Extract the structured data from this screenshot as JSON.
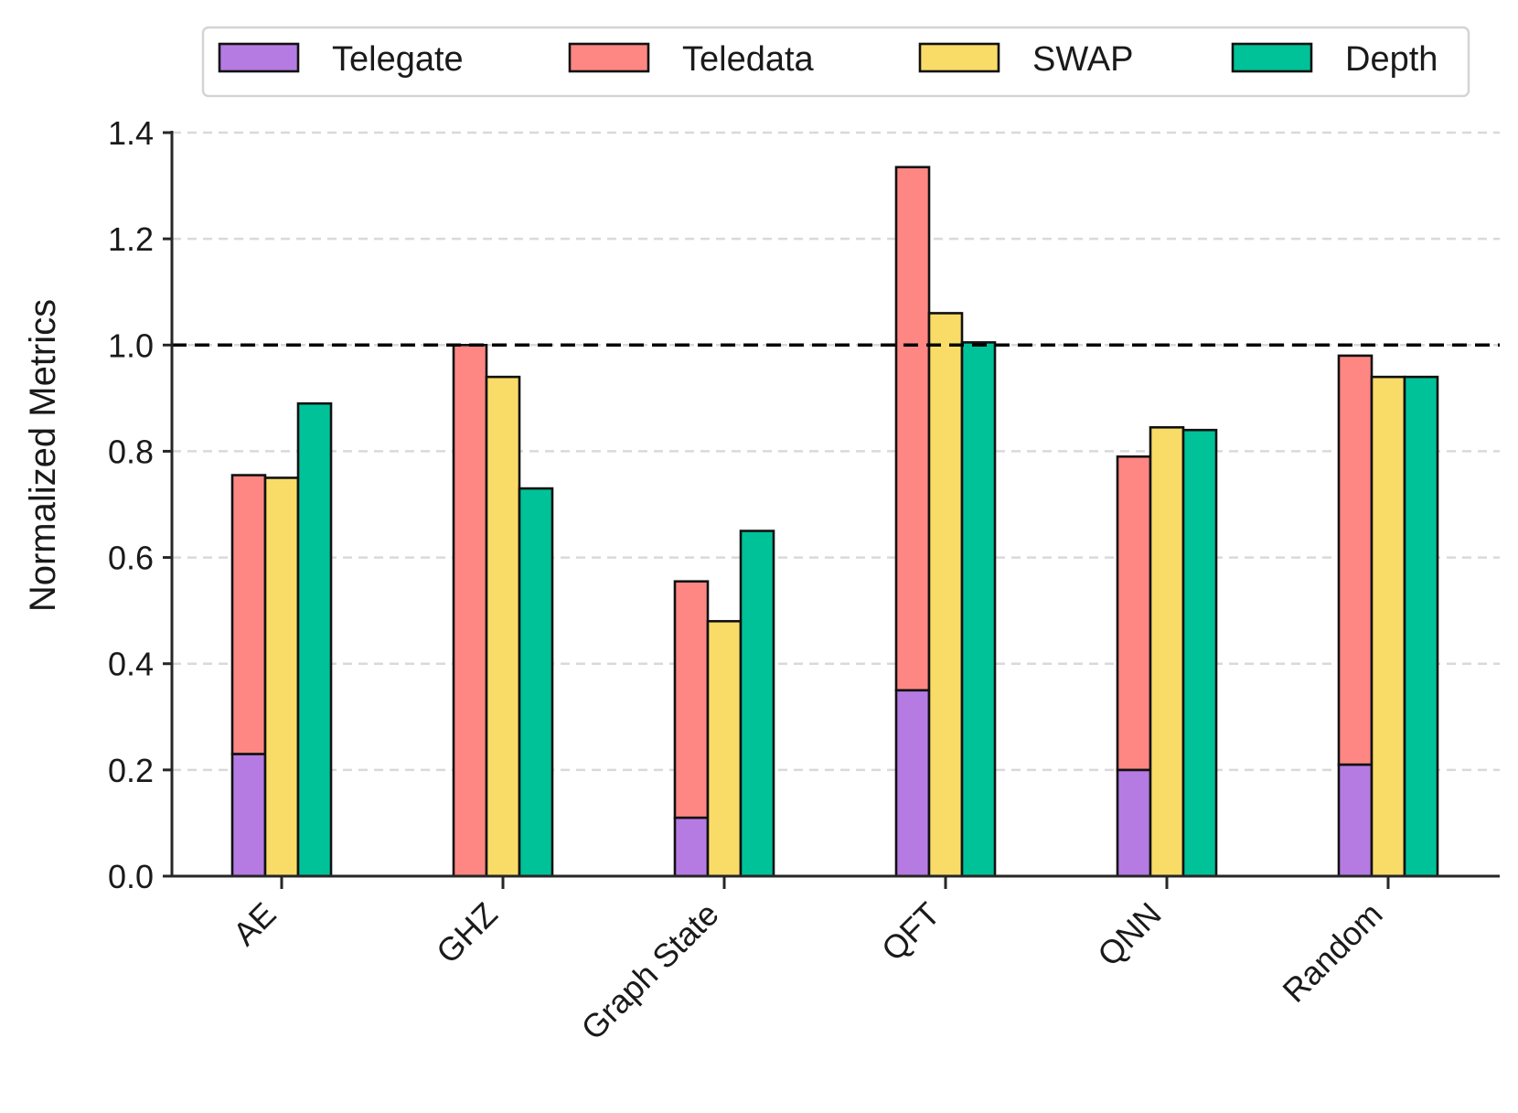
{
  "chart_data": {
    "type": "bar",
    "subtype": "grouped-stacked",
    "title": "",
    "xlabel": "",
    "ylabel": "Normalized Metrics",
    "ylim": [
      0.0,
      1.4
    ],
    "yticks": [
      "0.0",
      "0.2",
      "0.4",
      "0.6",
      "0.8",
      "1.0",
      "1.2",
      "1.4"
    ],
    "ytick_values": [
      0.0,
      0.2,
      0.4,
      0.6,
      0.8,
      1.0,
      1.2,
      1.4
    ],
    "grid": "horizontal dashed",
    "reference_line": {
      "y": 1.0,
      "style": "dashed",
      "color": "#000000"
    },
    "legend_position": "top",
    "categories": [
      "AE",
      "GHZ",
      "Graph State",
      "QFT",
      "QNN",
      "Random"
    ],
    "series": [
      {
        "name": "Telegate",
        "color": "#b57be3",
        "stack": "comm",
        "values": [
          0.23,
          0.0,
          0.11,
          0.35,
          0.2,
          0.21
        ]
      },
      {
        "name": "Teledata",
        "color": "#fe8783",
        "stack": "comm",
        "values": [
          0.525,
          1.0,
          0.445,
          0.985,
          0.59,
          0.77
        ]
      },
      {
        "name": "SWAP",
        "color": "#f9dc68",
        "stack": "swap",
        "values": [
          0.75,
          0.94,
          0.48,
          1.06,
          0.845,
          0.94
        ]
      },
      {
        "name": "Depth",
        "color": "#00c298",
        "stack": "depth",
        "values": [
          0.89,
          0.73,
          0.65,
          1.005,
          0.84,
          0.94
        ]
      }
    ]
  }
}
